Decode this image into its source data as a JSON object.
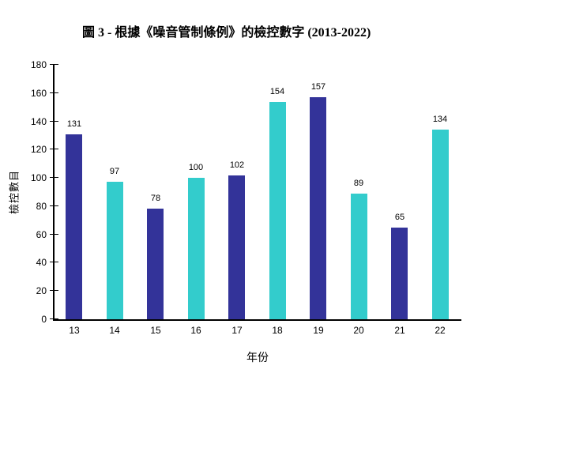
{
  "chart_data": {
    "type": "bar",
    "title": "圖 3 - 根據《噪音管制條例》的檢控數字 (2013-2022)",
    "xlabel": "年份",
    "ylabel": "檢控數目",
    "categories": [
      "13",
      "14",
      "15",
      "16",
      "17",
      "18",
      "19",
      "20",
      "21",
      "22"
    ],
    "values": [
      131,
      97,
      78,
      100,
      102,
      154,
      157,
      89,
      65,
      134
    ],
    "bar_colors": [
      "#333399",
      "#33CCCC",
      "#333399",
      "#33CCCC",
      "#333399",
      "#33CCCC",
      "#333399",
      "#33CCCC",
      "#333399",
      "#33CCCC"
    ],
    "ylim": [
      0,
      180
    ],
    "yticks": [
      0,
      20,
      40,
      60,
      80,
      100,
      120,
      140,
      160,
      180
    ],
    "grid": "off",
    "legend": "none",
    "axis_color": "#000000",
    "text_color": "#000000",
    "background_color": "#ffffff"
  }
}
